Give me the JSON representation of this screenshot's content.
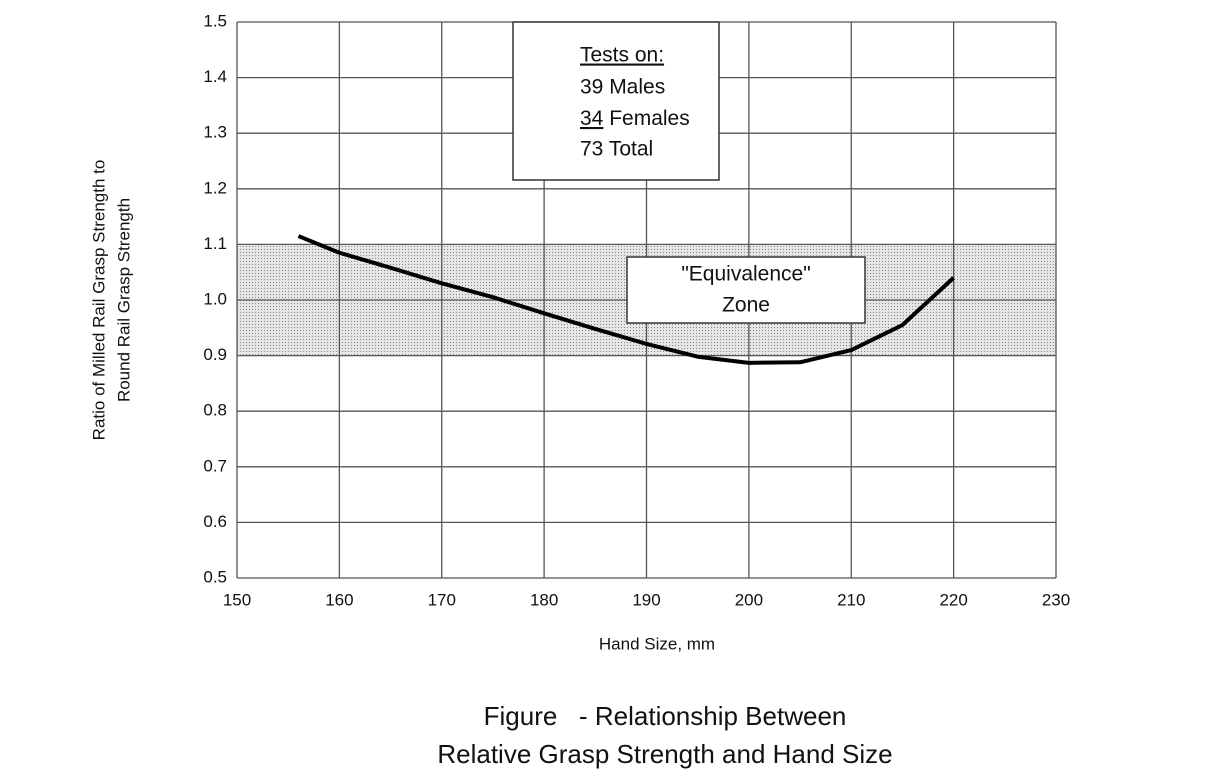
{
  "chart_data": {
    "type": "line",
    "xlabel": "Hand Size, mm",
    "ylabel": [
      "Ratio of Milled Rail Grasp Strength to",
      "Round Rail Grasp Strength"
    ],
    "caption": [
      "Figure   - Relationship Between",
      "Relative Grasp Strength and Hand Size"
    ],
    "x": [
      156,
      160,
      165,
      170,
      175,
      180,
      185,
      190,
      195,
      200,
      205,
      210,
      215,
      220
    ],
    "series": [
      {
        "color": "#000000",
        "values": [
          1.115,
          1.085,
          1.058,
          1.03,
          1.005,
          0.976,
          0.948,
          0.921,
          0.898,
          0.887,
          0.888,
          0.91,
          0.955,
          1.04
        ]
      }
    ],
    "xlim": [
      150,
      230
    ],
    "xticks": [
      150,
      160,
      170,
      180,
      190,
      200,
      210,
      220,
      230
    ],
    "ylim": [
      0.5,
      1.5
    ],
    "yticks": [
      0.5,
      0.6,
      0.7,
      0.8,
      0.9,
      {
        "value": 1.0,
        "label": "1.0"
      },
      1.1,
      1.2,
      1.3,
      1.4,
      1.5
    ],
    "grid": true,
    "zone": {
      "ymin": 0.9,
      "ymax": 1.1,
      "label": [
        "\"Equivalence\"",
        "Zone"
      ]
    },
    "tests_box": {
      "heading": "Tests on:",
      "males": "39 Males",
      "females_count": "34",
      "females_label": "Females",
      "total": "73 Total"
    }
  }
}
